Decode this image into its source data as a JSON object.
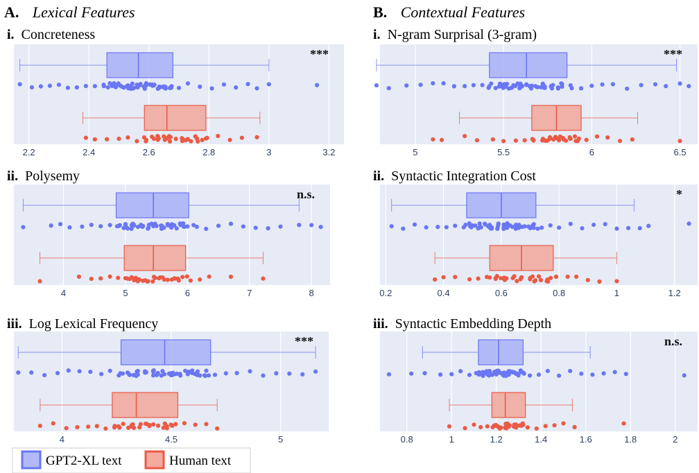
{
  "sections": [
    {
      "letter": "A.",
      "title": "Lexical Features"
    },
    {
      "letter": "B.",
      "title": "Contextual Features"
    }
  ],
  "legend": {
    "items": [
      {
        "label": "GPT2-XL text",
        "color": "#6a76f2"
      },
      {
        "label": "Human text",
        "color": "#ea5a44"
      }
    ]
  },
  "colors": {
    "gpt": "#6a76f2",
    "human": "#ea5a44",
    "panel_bg": "#e6ebf6",
    "grid": "#ffffff",
    "tick_text": "#2a3f5f"
  },
  "chart_data": [
    {
      "type": "box",
      "numeral": "i.",
      "title": "Concreteness",
      "significance": "***",
      "xlim": [
        2.15,
        3.25
      ],
      "ticks": [
        2.2,
        2.4,
        2.6,
        2.8,
        3,
        3.2
      ],
      "tick_labels": [
        "2.2",
        "2.4",
        "2.6",
        "2.8",
        "3",
        "3.2"
      ],
      "series": [
        {
          "group": "gpt",
          "min": 2.17,
          "q1": 2.46,
          "median": 2.565,
          "q3": 2.68,
          "max": 3.0,
          "points": [
            2.17,
            2.21,
            2.24,
            2.27,
            2.3,
            2.33,
            2.36,
            2.39,
            2.42,
            2.45,
            2.47,
            2.49,
            2.51,
            2.53,
            2.55,
            2.57,
            2.59,
            2.61,
            2.63,
            2.65,
            2.67,
            2.7,
            2.73,
            2.77,
            2.81,
            2.85,
            2.89,
            2.93,
            2.96,
            3.0,
            3.16
          ]
        },
        {
          "group": "human",
          "min": 2.38,
          "q1": 2.585,
          "median": 2.66,
          "q3": 2.79,
          "max": 2.97,
          "points": [
            2.39,
            2.42,
            2.46,
            2.5,
            2.53,
            2.56,
            2.59,
            2.61,
            2.63,
            2.65,
            2.67,
            2.69,
            2.71,
            2.73,
            2.76,
            2.79,
            2.83,
            2.87,
            2.91,
            2.96
          ]
        }
      ]
    },
    {
      "type": "box",
      "numeral": "i.",
      "title": "N-gram Surprisal (3-gram)",
      "significance": "***",
      "xlim": [
        4.8,
        6.6
      ],
      "ticks": [
        5,
        5.5,
        6,
        6.5
      ],
      "tick_labels": [
        "5",
        "5.5",
        "6",
        "6.5"
      ],
      "series": [
        {
          "group": "gpt",
          "min": 4.78,
          "q1": 5.42,
          "median": 5.63,
          "q3": 5.86,
          "max": 6.48,
          "points": [
            4.78,
            4.85,
            4.95,
            5.03,
            5.1,
            5.16,
            5.22,
            5.28,
            5.33,
            5.38,
            5.43,
            5.48,
            5.53,
            5.58,
            5.63,
            5.68,
            5.73,
            5.78,
            5.83,
            5.88,
            5.94,
            6.0,
            6.06,
            6.12,
            6.2,
            6.28,
            6.36,
            6.42,
            6.5,
            6.55
          ]
        },
        {
          "group": "human",
          "min": 5.25,
          "q1": 5.66,
          "median": 5.8,
          "q3": 5.94,
          "max": 6.26,
          "points": [
            5.1,
            5.15,
            5.28,
            5.35,
            5.44,
            5.5,
            5.57,
            5.62,
            5.67,
            5.72,
            5.76,
            5.8,
            5.84,
            5.88,
            5.92,
            5.97,
            6.03,
            6.09,
            6.16,
            6.23,
            6.5
          ]
        }
      ]
    },
    {
      "type": "box",
      "numeral": "ii.",
      "title": "Polysemy",
      "significance": "n.s.",
      "xlim": [
        3.2,
        8.3
      ],
      "ticks": [
        4,
        5,
        6,
        7,
        8
      ],
      "tick_labels": [
        "4",
        "5",
        "6",
        "7",
        "8"
      ],
      "series": [
        {
          "group": "gpt",
          "min": 3.35,
          "q1": 4.85,
          "median": 5.45,
          "q3": 6.02,
          "max": 7.8,
          "points": [
            3.35,
            3.8,
            3.95,
            4.1,
            4.3,
            4.45,
            4.6,
            4.75,
            4.9,
            5.0,
            5.12,
            5.25,
            5.38,
            5.5,
            5.62,
            5.75,
            5.88,
            6.0,
            6.15,
            6.3,
            6.5,
            6.7,
            6.9,
            7.1,
            7.3,
            7.5,
            7.8,
            8.0,
            8.15
          ]
        },
        {
          "group": "human",
          "min": 3.62,
          "q1": 4.98,
          "median": 5.45,
          "q3": 5.97,
          "max": 7.22,
          "points": [
            3.62,
            4.25,
            4.45,
            4.6,
            4.75,
            4.88,
            5.0,
            5.1,
            5.2,
            5.32,
            5.44,
            5.56,
            5.68,
            5.8,
            5.92,
            6.05,
            6.2,
            6.35,
            6.7,
            7.22
          ]
        }
      ]
    },
    {
      "type": "box",
      "numeral": "ii.",
      "title": "Syntactic Integration Cost",
      "significance": "*",
      "xlim": [
        0.18,
        1.28
      ],
      "ticks": [
        0.2,
        0.4,
        0.6,
        0.8,
        1,
        1.2
      ],
      "tick_labels": [
        "0.2",
        "0.4",
        "0.6",
        "0.8",
        "1",
        "1.2"
      ],
      "series": [
        {
          "group": "gpt",
          "min": 0.22,
          "q1": 0.48,
          "median": 0.6,
          "q3": 0.72,
          "max": 1.06,
          "points": [
            0.22,
            0.26,
            0.3,
            0.34,
            0.38,
            0.41,
            0.44,
            0.47,
            0.5,
            0.53,
            0.56,
            0.59,
            0.62,
            0.65,
            0.68,
            0.71,
            0.74,
            0.77,
            0.8,
            0.84,
            0.88,
            0.92,
            0.96,
            1.0,
            1.04,
            1.08,
            1.11,
            1.25
          ]
        },
        {
          "group": "human",
          "min": 0.37,
          "q1": 0.56,
          "median": 0.67,
          "q3": 0.78,
          "max": 1.0,
          "points": [
            0.37,
            0.4,
            0.44,
            0.49,
            0.52,
            0.55,
            0.58,
            0.61,
            0.64,
            0.67,
            0.7,
            0.73,
            0.76,
            0.79,
            0.83,
            0.86,
            0.9,
            0.94,
            1.0
          ]
        }
      ]
    },
    {
      "type": "box",
      "numeral": "iii.",
      "title": "Log Lexical Frequency",
      "significance": "***",
      "xlim": [
        3.78,
        5.22
      ],
      "ticks": [
        4,
        4.5,
        5
      ],
      "tick_labels": [
        "4",
        "4.5",
        "5"
      ],
      "series": [
        {
          "group": "gpt",
          "min": 3.8,
          "q1": 4.27,
          "median": 4.47,
          "q3": 4.68,
          "max": 5.16,
          "points": [
            3.8,
            3.86,
            3.92,
            3.98,
            4.03,
            4.08,
            4.13,
            4.18,
            4.22,
            4.26,
            4.3,
            4.34,
            4.38,
            4.42,
            4.46,
            4.5,
            4.54,
            4.58,
            4.62,
            4.66,
            4.7,
            4.75,
            4.8,
            4.86,
            4.92,
            4.98,
            5.04,
            5.1,
            5.16
          ]
        },
        {
          "group": "human",
          "min": 3.9,
          "q1": 4.23,
          "median": 4.34,
          "q3": 4.53,
          "max": 4.71,
          "points": [
            3.9,
            3.96,
            4.02,
            4.07,
            4.12,
            4.16,
            4.2,
            4.24,
            4.28,
            4.32,
            4.36,
            4.4,
            4.44,
            4.48,
            4.52,
            4.56,
            4.61,
            4.66,
            4.71
          ]
        }
      ]
    },
    {
      "type": "box",
      "numeral": "iii.",
      "title": "Syntactic Embedding Depth",
      "significance": "n.s.",
      "xlim": [
        0.68,
        2.1
      ],
      "ticks": [
        0.8,
        1,
        1.2,
        1.4,
        1.6,
        1.8,
        2
      ],
      "tick_labels": [
        "0.8",
        "1",
        "1.2",
        "1.4",
        "1.6",
        "1.8",
        "2"
      ],
      "series": [
        {
          "group": "gpt",
          "min": 0.87,
          "q1": 1.12,
          "median": 1.21,
          "q3": 1.32,
          "max": 1.62,
          "points": [
            0.72,
            0.82,
            0.88,
            0.95,
            1.0,
            1.04,
            1.08,
            1.11,
            1.14,
            1.17,
            1.2,
            1.23,
            1.26,
            1.29,
            1.32,
            1.35,
            1.39,
            1.43,
            1.48,
            1.53,
            1.58,
            1.63,
            1.68,
            1.73,
            1.78,
            2.04
          ]
        },
        {
          "group": "human",
          "min": 0.99,
          "q1": 1.18,
          "median": 1.24,
          "q3": 1.33,
          "max": 1.54,
          "points": [
            0.99,
            1.06,
            1.1,
            1.13,
            1.16,
            1.19,
            1.22,
            1.25,
            1.28,
            1.31,
            1.34,
            1.38,
            1.42,
            1.46,
            1.5,
            1.55,
            1.77
          ]
        }
      ]
    }
  ]
}
